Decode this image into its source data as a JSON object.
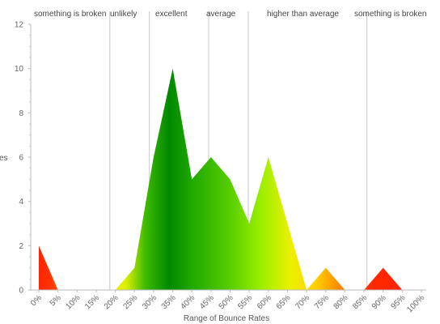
{
  "chart_data": {
    "type": "area",
    "xlabel": "Range of Bounce Rates",
    "ylabel": "es",
    "ylim": [
      0,
      12
    ],
    "yticks": [
      "0",
      "2",
      "4",
      "6",
      "8",
      "10",
      "12"
    ],
    "categories": [
      "0%",
      "5%",
      "10%",
      "15%",
      "20%",
      "25%",
      "30%",
      "35%",
      "40%",
      "45%",
      "50%",
      "55%",
      "60%",
      "65%",
      "70%",
      "75%",
      "80%",
      "85%",
      "90%",
      "95%",
      "100%"
    ],
    "values": [
      2,
      0,
      0,
      0,
      0,
      1,
      6,
      10,
      5,
      6,
      5,
      3,
      6,
      3,
      0,
      1,
      0,
      0,
      1,
      0,
      0
    ],
    "zones": [
      {
        "label": "something is broken",
        "from": 0,
        "to": 20,
        "color": "#ff2200"
      },
      {
        "label": "unlikely",
        "from": 20,
        "to": 30,
        "color": "#ffe600"
      },
      {
        "label": "excellent",
        "from": 30,
        "to": 45,
        "color": "#009900"
      },
      {
        "label": "average",
        "from": 45,
        "to": 55,
        "color": "#55cc00"
      },
      {
        "label": "higher than average",
        "from": 55,
        "to": 85,
        "color": "#ffcc00"
      },
      {
        "label": "something is broken",
        "from": 85,
        "to": 100,
        "color": "#ff2200"
      }
    ],
    "grid": true
  }
}
